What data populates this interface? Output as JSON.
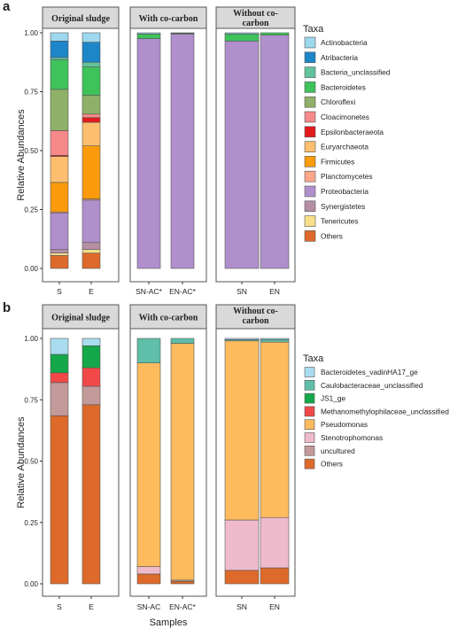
{
  "figure": {
    "x_axis_label": "Samples",
    "y_axis_label": "Relative Abundances",
    "legend_title": "Taxa",
    "y_ticks": [
      "0.00",
      "0.25",
      "0.50",
      "0.75",
      "1.00"
    ]
  },
  "chart_data": [
    {
      "panel_letter": "a",
      "type": "bar",
      "stacked": true,
      "ylabel": "Relative Abundances",
      "xlabel": "",
      "ylim": [
        0,
        1
      ],
      "facets": [
        {
          "title": [
            "Original sludge"
          ],
          "categories": [
            "S",
            "E"
          ]
        },
        {
          "title": [
            "With co-carbon"
          ],
          "categories": [
            "SN-AC*",
            "EN-AC*"
          ]
        },
        {
          "title": [
            "Without co-",
            "carbon"
          ],
          "categories": [
            "SN",
            "EN"
          ]
        }
      ],
      "categories": [
        "S",
        "E",
        "SN-AC*",
        "EN-AC*",
        "SN",
        "EN"
      ],
      "series": [
        {
          "name": "Others",
          "color": "#dd6a2a",
          "values": [
            0.055,
            0.065,
            0,
            0,
            0,
            0
          ]
        },
        {
          "name": "Tenericutes",
          "color": "#f7e089",
          "values": [
            0.01,
            0.015,
            0,
            0,
            0,
            0
          ]
        },
        {
          "name": "Synergistetes",
          "color": "#b58fa3",
          "values": [
            0.015,
            0.03,
            0,
            0,
            0,
            0
          ]
        },
        {
          "name": "Proteobacteria",
          "color": "#b08fcc",
          "values": [
            0.155,
            0.18,
            0.975,
            0.995,
            0.965,
            0.99
          ]
        },
        {
          "name": "Planctomycetes",
          "color": "#fca68a",
          "values": [
            0.005,
            0.005,
            0,
            0,
            0,
            0
          ]
        },
        {
          "name": "Firmicutes",
          "color": "#fb9a0b",
          "values": [
            0.125,
            0.225,
            0,
            0,
            0,
            0
          ]
        },
        {
          "name": "Euryarchaeota",
          "color": "#fdbf6f",
          "values": [
            0.11,
            0.1,
            0,
            0,
            0,
            0
          ]
        },
        {
          "name": "Epsilonbacteraeota",
          "color": "#e31a1c",
          "values": [
            0.005,
            0.02,
            0,
            0,
            0,
            0
          ]
        },
        {
          "name": "Cloacimonetes",
          "color": "#f7898a",
          "values": [
            0.105,
            0.015,
            0,
            0,
            0,
            0
          ]
        },
        {
          "name": "Chloroflexi",
          "color": "#8fb068",
          "values": [
            0.175,
            0.08,
            0,
            0,
            0,
            0
          ]
        },
        {
          "name": "Bacteroidetes",
          "color": "#3ec25a",
          "values": [
            0.125,
            0.12,
            0.02,
            0.003,
            0.03,
            0.01
          ]
        },
        {
          "name": "Bacteria_unclassified",
          "color": "#62c29c",
          "values": [
            0.01,
            0.02,
            0,
            0,
            0,
            0
          ]
        },
        {
          "name": "Atribacteria",
          "color": "#1c86c9",
          "values": [
            0.07,
            0.085,
            0,
            0,
            0,
            0
          ]
        },
        {
          "name": "Actinobacteria",
          "color": "#9ed8ee",
          "values": [
            0.035,
            0.04,
            0.005,
            0.002,
            0.005,
            0
          ]
        }
      ],
      "legend_order": [
        "Actinobacteria",
        "Atribacteria",
        "Bacteria_unclassified",
        "Bacteroidetes",
        "Chloroflexi",
        "Cloacimonetes",
        "Epsilonbacteraeota",
        "Euryarchaeota",
        "Firmicutes",
        "Planctomycetes",
        "Proteobacteria",
        "Synergistetes",
        "Tenericutes",
        "Others"
      ],
      "legend_title": "Taxa",
      "legend_position": "right"
    },
    {
      "panel_letter": "b",
      "type": "bar",
      "stacked": true,
      "ylabel": "Relative Abundances",
      "xlabel": "Samples",
      "ylim": [
        0,
        1
      ],
      "facets": [
        {
          "title": [
            "Original sludge"
          ],
          "categories": [
            "S",
            "E"
          ]
        },
        {
          "title": [
            "With co-carbon"
          ],
          "categories": [
            "SN-AC",
            "EN-AC*"
          ]
        },
        {
          "title": [
            "Without co-",
            "carbon"
          ],
          "categories": [
            "SN",
            "EN"
          ]
        }
      ],
      "categories": [
        "S",
        "E",
        "SN-AC",
        "EN-AC*",
        "SN",
        "EN"
      ],
      "series": [
        {
          "name": "Others",
          "color": "#dd6a2a",
          "values": [
            0.685,
            0.73,
            0.04,
            0.01,
            0.055,
            0.065
          ]
        },
        {
          "name": "uncultured",
          "color": "#c39a9a",
          "values": [
            0.135,
            0.075,
            0,
            0.005,
            0,
            0
          ]
        },
        {
          "name": "Stenotrophomonas",
          "color": "#efbacb",
          "values": [
            0,
            0,
            0.03,
            0,
            0.205,
            0.205
          ]
        },
        {
          "name": "Pseudomonas",
          "color": "#fdbb5e",
          "values": [
            0,
            0,
            0.83,
            0.965,
            0.73,
            0.715
          ]
        },
        {
          "name": "Methanomethylophilaceae_unclassified",
          "color": "#f24848",
          "values": [
            0.04,
            0.075,
            0,
            0,
            0,
            0
          ]
        },
        {
          "name": "JS1_ge",
          "color": "#14a84a",
          "values": [
            0.075,
            0.09,
            0,
            0,
            0,
            0
          ]
        },
        {
          "name": "Caulobacteraceae_unclassified",
          "color": "#5fbfa8",
          "values": [
            0,
            0,
            0.1,
            0.02,
            0.005,
            0.01
          ]
        },
        {
          "name": "Bacteroidetes_vadinHA17_ge",
          "color": "#a9dcef",
          "values": [
            0.065,
            0.03,
            0,
            0,
            0.005,
            0.005
          ]
        }
      ],
      "legend_order": [
        "Bacteroidetes_vadinHA17_ge",
        "Caulobacteraceae_unclassified",
        "JS1_ge",
        "Methanomethylophilaceae_unclassified",
        "Pseudomonas",
        "Stenotrophomonas",
        "uncultured",
        "Others"
      ],
      "legend_title": "Taxa",
      "legend_position": "right"
    }
  ]
}
